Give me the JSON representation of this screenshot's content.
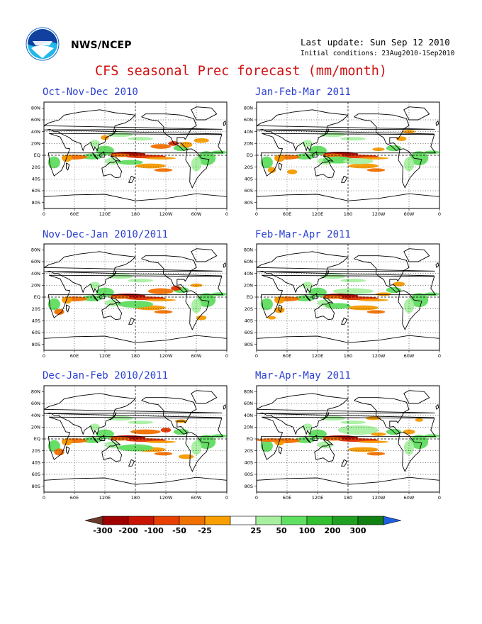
{
  "header": {
    "org": "NWS/NCEP",
    "last_update": "Last update: Sun Sep 12 2010",
    "initial_conditions": "Initial conditions: 23Aug2010-1Sep2010",
    "title": "CFS seasonal Prec forecast (mm/month)"
  },
  "panels": [
    {
      "title": "Oct-Nov-Dec 2010"
    },
    {
      "title": "Jan-Feb-Mar 2011"
    },
    {
      "title": "Nov-Dec-Jan 2010/2011"
    },
    {
      "title": "Feb-Mar-Apr 2011"
    },
    {
      "title": "Dec-Jan-Feb 2010/2011"
    },
    {
      "title": "Mar-Apr-May 2011"
    }
  ],
  "lat_labels": [
    "80N",
    "60N",
    "40N",
    "20N",
    "EQ",
    "20S",
    "40S",
    "60S",
    "80S"
  ],
  "lon_labels": [
    "0",
    "60E",
    "120E",
    "180",
    "120W",
    "60W",
    "0"
  ],
  "legend": {
    "labels": [
      "-300",
      "-200",
      "-100",
      "-50",
      "-25",
      "25",
      "50",
      "100",
      "200",
      "300"
    ],
    "colors": [
      "#6b3a2a",
      "#a00000",
      "#c81400",
      "#e84000",
      "#f07000",
      "#f9a000",
      "#ffffff",
      "#a8f0a0",
      "#60e060",
      "#30c030",
      "#20a020",
      "#108010",
      "#2060e0"
    ]
  },
  "colors": {
    "title_red": "#d01010",
    "panel_title_blue": "#2a3fd0"
  }
}
